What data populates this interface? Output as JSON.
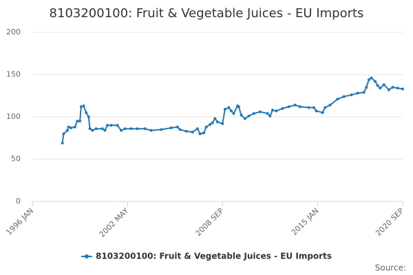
{
  "chart_data": {
    "type": "line",
    "title": "8103200100: Fruit & Vegetable Juices - EU Imports",
    "source": "Source:",
    "x": [
      "1998-01",
      "1998-02",
      "1998-05",
      "1998-06",
      "1998-08",
      "1998-11",
      "1999-01",
      "1999-03",
      "1999-04",
      "1999-06",
      "1999-08",
      "1999-10",
      "1999-11",
      "2000-01",
      "2000-04",
      "2000-09",
      "2000-11",
      "2001-01",
      "2001-04",
      "2001-09",
      "2001-12",
      "2002-03",
      "2002-08",
      "2003-01",
      "2003-07",
      "2003-12",
      "2004-08",
      "2005-04",
      "2005-09",
      "2005-11",
      "2006-04",
      "2006-09",
      "2007-01",
      "2007-03",
      "2007-06",
      "2007-08",
      "2007-11",
      "2008-01",
      "2008-03",
      "2008-05",
      "2008-09",
      "2008-11",
      "2009-02",
      "2009-04",
      "2009-06",
      "2009-09",
      "2009-10",
      "2009-12",
      "2010-03",
      "2010-06",
      "2010-10",
      "2011-03",
      "2011-09",
      "2011-11",
      "2012-01",
      "2012-04",
      "2012-09",
      "2013-02",
      "2013-07",
      "2013-11",
      "2014-06",
      "2014-10",
      "2014-12",
      "2015-05",
      "2015-07",
      "2015-11",
      "2016-05",
      "2016-10",
      "2017-04",
      "2017-09",
      "2018-02",
      "2018-04",
      "2018-06",
      "2018-08",
      "2018-11",
      "2019-01",
      "2019-03",
      "2019-06",
      "2019-10",
      "2020-01",
      "2020-05",
      "2020-09"
    ],
    "series": [
      {
        "name": "8103200100: Fruit & Vegetable Juices - EU Imports",
        "color": "#2179b9",
        "values": [
          69,
          80,
          84,
          88,
          87,
          88,
          95,
          95,
          112,
          113,
          105,
          100,
          86,
          84,
          86,
          86,
          84,
          90,
          90,
          90,
          84,
          86,
          86,
          86,
          86,
          84,
          85,
          87,
          88,
          85,
          83,
          82,
          86,
          80,
          81,
          88,
          91,
          93,
          98,
          94,
          92,
          109,
          111,
          107,
          104,
          113,
          112,
          102,
          98,
          101,
          104,
          106,
          104,
          101,
          108,
          107,
          110,
          112,
          114,
          112,
          111,
          111,
          107,
          105,
          111,
          114,
          121,
          124,
          126,
          128,
          129,
          135,
          144,
          146,
          142,
          137,
          134,
          138,
          132,
          135,
          134,
          133
        ]
      }
    ],
    "xlim": [
      "1996-01",
      "2020-09"
    ],
    "xticks": [
      {
        "value": "1996-01",
        "label": "1996 JAN"
      },
      {
        "value": "2002-05",
        "label": "2002 MAY"
      },
      {
        "value": "2008-09",
        "label": "2008 SEP"
      },
      {
        "value": "2015-01",
        "label": "2015 JAN"
      },
      {
        "value": "2020-09",
        "label": "2020 SEP"
      }
    ],
    "ylim": [
      0,
      200
    ],
    "yticks": [
      0,
      50,
      100,
      150,
      200
    ],
    "grid": true,
    "legend": "bottom"
  }
}
